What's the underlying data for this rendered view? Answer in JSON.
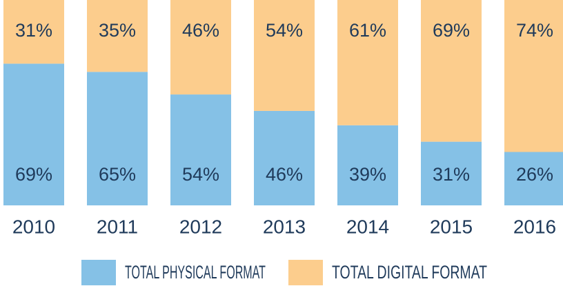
{
  "chart_data": {
    "type": "stacked_bar",
    "categories": [
      "2010",
      "2011",
      "2012",
      "2013",
      "2014",
      "2015",
      "2016"
    ],
    "series": [
      {
        "name": "TOTAL PHYSICAL FORMAT",
        "color": "#85c1e6",
        "values": [
          69,
          65,
          54,
          46,
          39,
          31,
          26
        ],
        "value_labels": [
          "69%",
          "65%",
          "54%",
          "46%",
          "39%",
          "31%",
          "26%"
        ]
      },
      {
        "name": "TOTAL DIGITAL FORMAT",
        "color": "#fccd8d",
        "values": [
          31,
          35,
          46,
          54,
          61,
          69,
          74
        ],
        "value_labels": [
          "31%",
          "35%",
          "46%",
          "54%",
          "61%",
          "69%",
          "74%"
        ]
      }
    ],
    "legend": "bottom"
  }
}
